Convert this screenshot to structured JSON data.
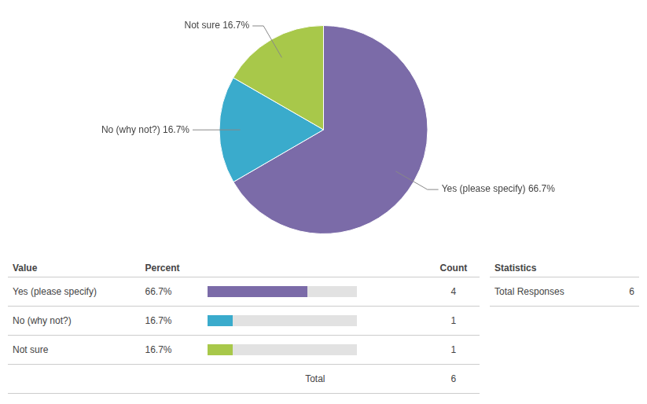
{
  "chart_data": {
    "type": "pie",
    "categories": [
      "Yes (please specify)",
      "No (why not?)",
      "Not sure"
    ],
    "values": [
      66.7,
      16.7,
      16.7
    ],
    "value_labels": [
      "66.7%",
      "16.7%",
      "16.7%"
    ],
    "colors": [
      "#7B6BA8",
      "#3AABCC",
      "#A8C84A"
    ],
    "annotations": [
      "Yes (please specify) 66.7%",
      "No (why not?) 16.7%",
      "Not sure 16.7%"
    ],
    "counts": [
      4,
      1,
      1
    ],
    "columns": [
      "Value",
      "Percent",
      "Count"
    ],
    "total_label": "Total",
    "total": 6,
    "stats_label": "Statistics",
    "stats_key": "Total Responses",
    "stats_value": 6
  }
}
